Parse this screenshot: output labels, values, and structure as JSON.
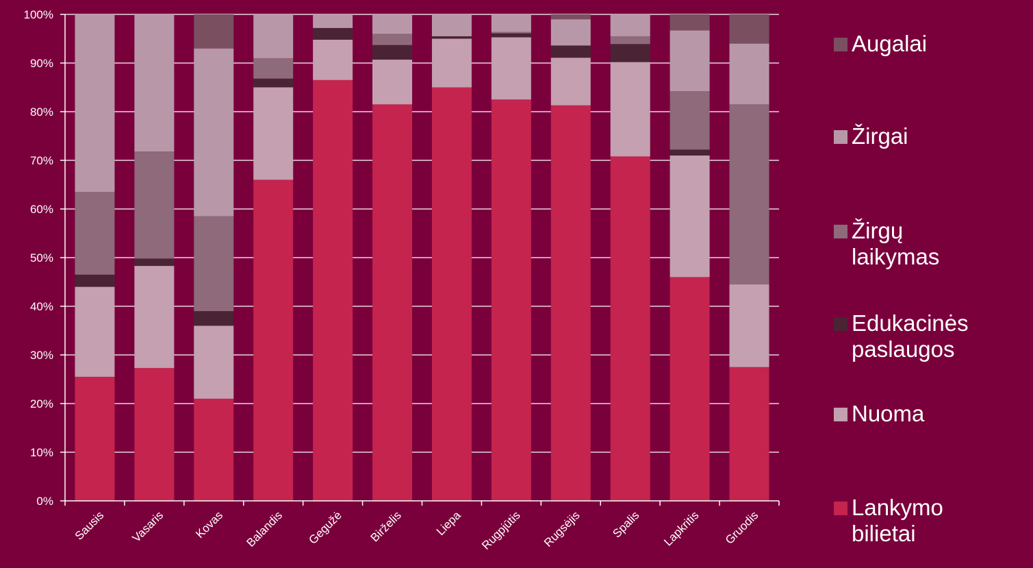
{
  "chart_data": {
    "type": "bar",
    "stacked": "percent",
    "categories": [
      "Sausis",
      "Vasaris",
      "Kovas",
      "Balandis",
      "Gegužė",
      "Birželis",
      "Liepa",
      "Rugpjūtis",
      "Rugsėjis",
      "Spalis",
      "Lapkritis",
      "Gruodis"
    ],
    "series": [
      {
        "name": "Lankymo bilietai",
        "color": "#c4244e",
        "values": [
          25.5,
          27.3,
          21.0,
          66.0,
          86.5,
          81.5,
          85.0,
          82.5,
          81.3,
          70.8,
          46.0,
          27.5
        ]
      },
      {
        "name": "Nuoma",
        "color": "#c4a0b0",
        "values": [
          18.5,
          21.0,
          15.0,
          19.0,
          8.3,
          9.2,
          10.0,
          12.8,
          9.8,
          19.4,
          25.0,
          17.0
        ]
      },
      {
        "name": "Edukacinės paslaugos",
        "color": "#4a2434",
        "values": [
          2.5,
          1.5,
          3.0,
          1.8,
          2.4,
          3.0,
          0.5,
          0.8,
          2.5,
          3.7,
          1.2,
          0.0
        ]
      },
      {
        "name": "Žirgų laikymas",
        "color": "#8e6a7a",
        "values": [
          17.0,
          22.0,
          19.5,
          4.2,
          0.0,
          2.3,
          0.0,
          0.3,
          0.0,
          1.6,
          12.0,
          37.0
        ]
      },
      {
        "name": "Žirgai",
        "color": "#b898a8",
        "values": [
          36.5,
          28.2,
          34.5,
          9.0,
          2.8,
          4.0,
          4.5,
          3.6,
          5.4,
          4.5,
          12.5,
          12.5
        ]
      },
      {
        "name": "Augalai",
        "color": "#7a5060",
        "values": [
          0.0,
          0.0,
          7.0,
          0.0,
          0.0,
          0.0,
          0.0,
          0.0,
          1.0,
          0.0,
          3.3,
          6.0
        ]
      }
    ],
    "yticks": [
      "0%",
      "10%",
      "20%",
      "30%",
      "40%",
      "50%",
      "60%",
      "70%",
      "80%",
      "90%",
      "100%"
    ],
    "ylim": [
      0,
      100
    ],
    "grid": true,
    "legend_position": "right",
    "legend_order": [
      "Augalai",
      "Žirgai",
      "Žirgų laikymas",
      "Edukacinės paslaugos",
      "Nuoma",
      "Lankymo bilietai"
    ],
    "legend_labels": {
      "Augalai": "Augalai",
      "Žirgai": "Žirgai",
      "Žirgų laikymas": "Žirgų\nlaikymas",
      "Edukacinės paslaugos": "Edukacinės\npaslaugos",
      "Nuoma": "Nuoma",
      "Lankymo bilietai": "Lankymo\nbilietai"
    }
  }
}
